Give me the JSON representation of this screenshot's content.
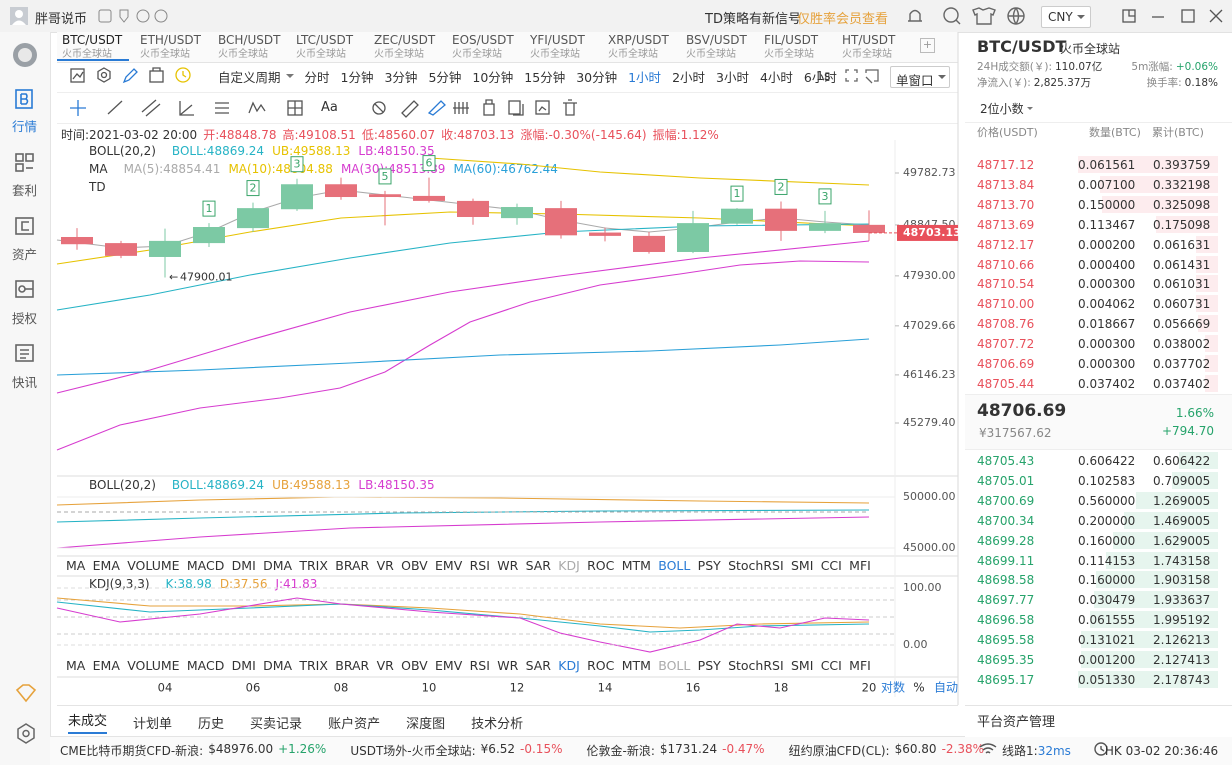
{
  "titlebar": {
    "user": "胖哥说币",
    "signal": "TD策略有新信号",
    "vip": "仅胜率会员查看",
    "currency": "CNY"
  },
  "sidebar": [
    "行情",
    "套利",
    "资产",
    "授权",
    "快讯"
  ],
  "tabs": [
    {
      "pair": "BTC/USDT",
      "exchange": "火币全球站"
    },
    {
      "pair": "ETH/USDT",
      "exchange": "火币全球站"
    },
    {
      "pair": "BCH/USDT",
      "exchange": "火币全球站"
    },
    {
      "pair": "LTC/USDT",
      "exchange": "火币全球站"
    },
    {
      "pair": "ZEC/USDT",
      "exchange": "火币全球站"
    },
    {
      "pair": "EOS/USDT",
      "exchange": "火币全球站"
    },
    {
      "pair": "YFI/USDT",
      "exchange": "火币全球站"
    },
    {
      "pair": "XRP/USDT",
      "exchange": "火币全球站"
    },
    {
      "pair": "BSV/USDT",
      "exchange": "火币全球站"
    },
    {
      "pair": "FIL/USDT",
      "exchange": "火币全球站"
    },
    {
      "pair": "HT/USDT",
      "exchange": "火币全球站"
    }
  ],
  "periods": [
    "自定义周期",
    "分时",
    "1分钟",
    "3分钟",
    "5分钟",
    "10分钟",
    "15分钟",
    "30分钟",
    "1小时",
    "2小时",
    "3小时",
    "4小时",
    "6小时"
  ],
  "active_period": "1小时",
  "refresh": "1s",
  "window": "单窗口",
  "toolbar_text": "Aa",
  "info": [
    "时间:2021-03-02 20:00",
    "开:48848.78",
    "高:49108.51",
    "低:48560.07",
    "收:48703.13",
    "涨幅:-0.30%(-145.64)",
    "振幅:1.12%"
  ],
  "main": {
    "boll": [
      "BOLL(20,2)",
      "BOLL:48869.24",
      "UB:49588.13",
      "LB:48150.35"
    ],
    "boll_colors": [
      "#333333",
      "#26b3c5",
      "#e6c200",
      "#d63ccf"
    ],
    "ma": [
      "MA",
      "MA(5):48854.41",
      "MA(10):48804.88",
      "MA(30):48513.89",
      "MA(60):46762.44"
    ],
    "ma_colors": [
      "#333333",
      "#aaaaaa",
      "#e6c200",
      "#d63ccf",
      "#2aa0d8"
    ],
    "td": "TD",
    "ylim": [
      44343,
      50287
    ],
    "yticks": [
      49782.73,
      {
        "value": 48847.5,
        "label": "48847.50"
      },
      {
        "value": 47930,
        "label": "47930.00"
      },
      47029.66,
      46146.23,
      {
        "value": 45279.4,
        "label": "45279.40"
      }
    ],
    "up_color": "#7cc9a4",
    "down_color": "#e6707a",
    "candles": [
      {
        "open": 48630,
        "high": 48790,
        "low": 48400,
        "close": 48500,
        "td": null
      },
      {
        "open": 48520,
        "high": 48560,
        "low": 48250,
        "close": 48290,
        "td": null
      },
      {
        "open": 48270,
        "high": 48780,
        "low": 47900.01,
        "close": 48560,
        "td": null
      },
      {
        "open": 48520,
        "high": 48880,
        "low": 48450,
        "close": 48810,
        "td": "1"
      },
      {
        "open": 48790,
        "high": 49250,
        "low": 48720,
        "close": 49150,
        "td": "2"
      },
      {
        "open": 49130,
        "high": 49680,
        "low": 49100,
        "close": 49580,
        "td": "3"
      },
      {
        "open": 49580,
        "high": 49700,
        "low": 49300,
        "close": 49350,
        "td": null
      },
      {
        "open": 49400,
        "high": 49460,
        "low": 48840,
        "close": 49350,
        "td": "5"
      },
      {
        "open": 49370,
        "high": 49700,
        "low": 49250,
        "close": 49280,
        "td": "6"
      },
      {
        "open": 49280,
        "high": 49320,
        "low": 48850,
        "close": 48990,
        "td": null
      },
      {
        "open": 48970,
        "high": 49230,
        "low": 48850,
        "close": 49170,
        "td": null
      },
      {
        "open": 49150,
        "high": 49280,
        "low": 48600,
        "close": 48660,
        "td": null
      },
      {
        "open": 48710,
        "high": 48800,
        "low": 48550,
        "close": 48650,
        "td": null
      },
      {
        "open": 48650,
        "high": 48720,
        "low": 48330,
        "close": 48360,
        "td": null
      },
      {
        "open": 48360,
        "high": 49100,
        "low": 48340,
        "close": 48880,
        "td": null
      },
      {
        "open": 48870,
        "high": 49150,
        "low": 48850,
        "close": 49140,
        "td": "1"
      },
      {
        "open": 49140,
        "high": 49270,
        "low": 48560,
        "close": 48740,
        "td": "2"
      },
      {
        "open": 48740,
        "high": 49100,
        "low": 48700,
        "close": 48880,
        "td": "3"
      },
      {
        "open": 48848.78,
        "high": 49108.51,
        "low": 48560.07,
        "close": 48703.13,
        "td": null
      }
    ],
    "low_label": "47900.01",
    "last_price": "48703.13"
  },
  "sub_boll": {
    "labels": [
      "BOLL(20,2)",
      "BOLL:48869.24",
      "UB:49588.13",
      "LB:48150.35"
    ],
    "colors": [
      "#333333",
      "#26b3c5",
      "#e6a23c",
      "#d63ccf"
    ],
    "ylim": [
      44314,
      51862
    ],
    "yticks": [
      {
        "value": 50000,
        "label": "50000.00"
      },
      {
        "value": 45000,
        "label": "45000.00"
      }
    ],
    "active": "BOLL"
  },
  "kdj": {
    "labels": [
      "KDJ(9,3,3)",
      "K:38.98",
      "D:37.56",
      "J:41.83"
    ],
    "colors": [
      "#333333",
      "#26b3c5",
      "#e6a23c",
      "#d63ccf"
    ],
    "ylim": [
      -21,
      117.5
    ],
    "yticks": [
      {
        "value": 100,
        "label": "100.00"
      },
      {
        "value": 0,
        "label": "0.00"
      }
    ],
    "active": "KDJ"
  },
  "indicators": [
    "MA",
    "EMA",
    "VOLUME",
    "MACD",
    "DMI",
    "DMA",
    "TRIX",
    "BRAR",
    "VR",
    "OBV",
    "EMV",
    "RSI",
    "WR",
    "SAR",
    "KDJ",
    "ROC",
    "MTM",
    "BOLL",
    "PSY",
    "StochRSI",
    "SMI",
    "CCI",
    "MFI"
  ],
  "dates": [
    "04",
    "06",
    "08",
    "10",
    "12",
    "14",
    "16",
    "18",
    "20"
  ],
  "scale_modes": [
    "对数",
    "%",
    "自动"
  ],
  "bottom_tabs": [
    "未成交",
    "计划单",
    "历史",
    "买卖记录",
    "账户资产",
    "深度图",
    "技术分析"
  ],
  "statusbar": {
    "tickers": [
      {
        "name": "CME比特币期货CFD-新浪:",
        "price": "$48976.00",
        "change": "+1.26%"
      },
      {
        "name": "USDT场外-火币全球站:",
        "price": "¥6.52",
        "change": "-0.15%"
      },
      {
        "name": "伦敦金-新浪:",
        "price": "$1731.24",
        "change": "-0.47%"
      },
      {
        "name": "纽约原油CFD(CL):",
        "price": "$60.80",
        "change": "-2.38%"
      }
    ],
    "line": "线路1:",
    "latency": "32ms",
    "clock": "HK 03-02 20:36:46"
  },
  "orderbook": {
    "pair": "BTC/USDT",
    "exchange": "火币全球站",
    "stats": [
      {
        "label": "24H成交额(￥):",
        "value": "110.07亿"
      },
      {
        "label": "5m涨幅:",
        "value": "+0.06%"
      },
      {
        "label": "净流入(￥):",
        "value": "2,825.37万"
      },
      {
        "label": "换手率:",
        "value": "0.18%"
      }
    ],
    "precision": "2位小数",
    "headers": [
      "价格(USDT)",
      "数量(BTC)",
      "累计(BTC)"
    ],
    "asks": [
      [
        "48717.12",
        "0.061561",
        "0.393759"
      ],
      [
        "48713.84",
        "0.007100",
        "0.332198"
      ],
      [
        "48713.70",
        "0.150000",
        "0.325098"
      ],
      [
        "48713.69",
        "0.113467",
        "0.175098"
      ],
      [
        "48712.17",
        "0.000200",
        "0.061631"
      ],
      [
        "48710.66",
        "0.000400",
        "0.061431"
      ],
      [
        "48710.54",
        "0.000300",
        "0.061031"
      ],
      [
        "48710.00",
        "0.004062",
        "0.060731"
      ],
      [
        "48708.76",
        "0.018667",
        "0.056669"
      ],
      [
        "48707.72",
        "0.000300",
        "0.038002"
      ],
      [
        "48706.69",
        "0.000300",
        "0.037702"
      ],
      [
        "48705.44",
        "0.037402",
        "0.037402"
      ]
    ],
    "mid": {
      "price": "48706.69",
      "pct": "1.66%",
      "cny": "¥317567.62",
      "change": "+794.70"
    },
    "bids": [
      [
        "48705.43",
        "0.606422",
        "0.606422"
      ],
      [
        "48705.01",
        "0.102583",
        "0.709005"
      ],
      [
        "48700.69",
        "0.560000",
        "1.269005"
      ],
      [
        "48700.34",
        "0.200000",
        "1.469005"
      ],
      [
        "48699.28",
        "0.160000",
        "1.629005"
      ],
      [
        "48699.11",
        "0.114153",
        "1.743158"
      ],
      [
        "48698.58",
        "0.160000",
        "1.903158"
      ],
      [
        "48697.77",
        "0.030479",
        "1.933637"
      ],
      [
        "48696.58",
        "0.061555",
        "1.995192"
      ],
      [
        "48695.58",
        "0.131021",
        "2.126213"
      ],
      [
        "48695.35",
        "0.001200",
        "2.127413"
      ],
      [
        "48695.17",
        "0.051330",
        "2.178743"
      ]
    ],
    "footer": "平台资产管理"
  }
}
